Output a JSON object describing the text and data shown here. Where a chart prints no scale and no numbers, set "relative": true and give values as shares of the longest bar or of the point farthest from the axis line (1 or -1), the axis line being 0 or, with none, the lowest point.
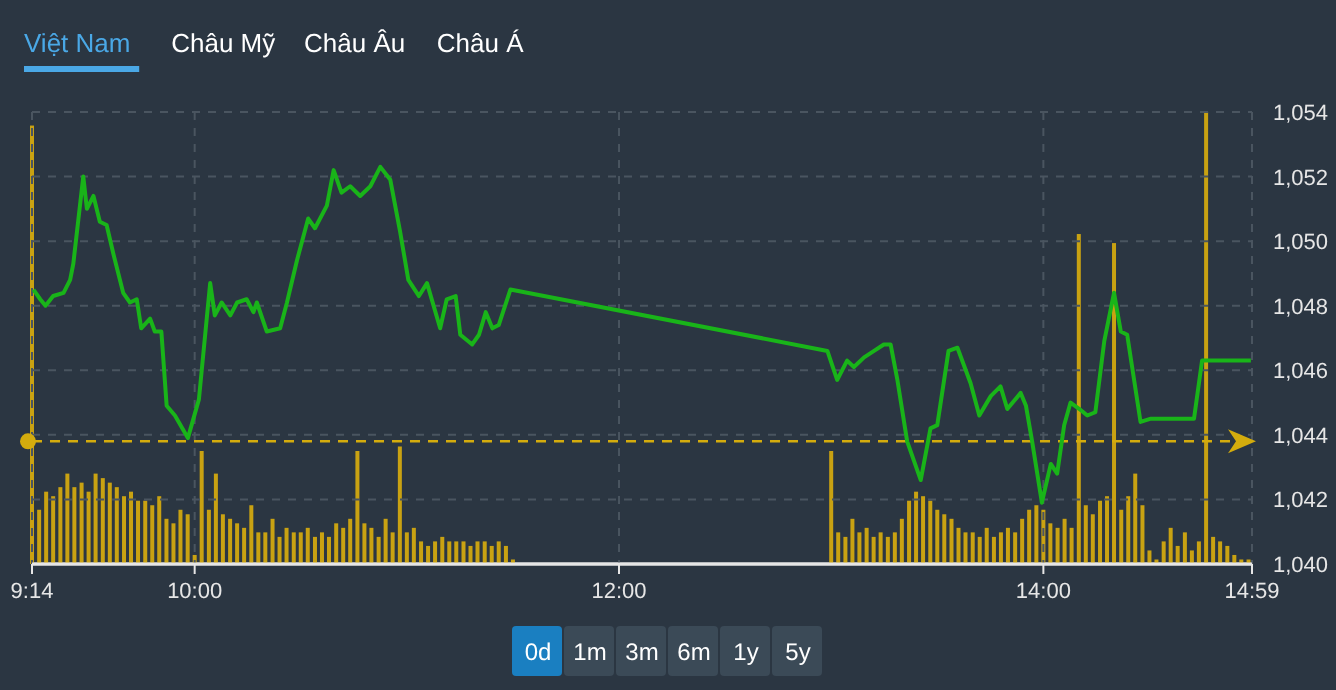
{
  "chart_data": [
    {
      "type": "line",
      "xlim": [
        9.2333,
        14.9833
      ],
      "ylim": [
        1040,
        1054
      ],
      "xticks": [
        {
          "value": 9.2333,
          "label": "9:14"
        },
        {
          "value": 10,
          "label": "10:00"
        },
        {
          "value": 12,
          "label": "12:00"
        },
        {
          "value": 14,
          "label": "14:00"
        },
        {
          "value": 14.9833,
          "label": "14:59"
        }
      ],
      "yticks": [
        {
          "value": 1040,
          "label": "1,040"
        },
        {
          "value": 1042,
          "label": "1,042"
        },
        {
          "value": 1044,
          "label": "1,044"
        },
        {
          "value": 1046,
          "label": "1,046"
        },
        {
          "value": 1048,
          "label": "1,048"
        },
        {
          "value": 1050,
          "label": "1,050"
        },
        {
          "value": 1052,
          "label": "1,052"
        },
        {
          "value": 1054,
          "label": "1,054"
        }
      ],
      "grid": true,
      "ref_lines": [
        {
          "axis": "y",
          "value": 1043.8,
          "color": "#d4ac0d",
          "line_style": "dashed"
        }
      ],
      "series": [
        {
          "color": "#19b419",
          "x": [
            9.24,
            9.272,
            9.297,
            9.333,
            9.382,
            9.413,
            9.428,
            9.475,
            9.492,
            9.523,
            9.553,
            9.585,
            9.617,
            9.663,
            9.695,
            9.727,
            9.748,
            9.79,
            9.812,
            9.843,
            9.868,
            9.907,
            9.968,
            10.02,
            10.073,
            10.095,
            10.127,
            10.168,
            10.2,
            10.245,
            10.277,
            10.293,
            10.34,
            10.403,
            10.435,
            10.482,
            10.535,
            10.567,
            10.623,
            10.655,
            10.692,
            10.733,
            10.78,
            10.828,
            10.875,
            10.922,
            10.968,
            11.007,
            11.057,
            11.095,
            11.157,
            11.188,
            11.23,
            11.252,
            11.308,
            11.34,
            11.372,
            11.403,
            11.433,
            11.488,
            12.982,
            13.028,
            13.075,
            13.107,
            13.155,
            13.202,
            13.248,
            13.28,
            13.312,
            13.358,
            13.422,
            13.468,
            13.5,
            13.553,
            13.595,
            13.657,
            13.698,
            13.752,
            13.798,
            13.83,
            13.893,
            13.918,
            13.947,
            13.993,
            14.035,
            14.065,
            14.098,
            14.128,
            14.17,
            14.207,
            14.245,
            14.287,
            14.333,
            14.365,
            14.395,
            14.458,
            14.507,
            14.71,
            14.748,
            14.978
          ],
          "values": [
            1048.5,
            1048.2,
            1048.0,
            1048.3,
            1048.4,
            1048.8,
            1049.3,
            1052.0,
            1051.0,
            1051.4,
            1050.6,
            1050.5,
            1049.6,
            1048.4,
            1048.1,
            1048.2,
            1047.3,
            1047.6,
            1047.2,
            1047.2,
            1044.9,
            1044.6,
            1043.9,
            1045.1,
            1048.7,
            1047.7,
            1048.1,
            1047.7,
            1048.1,
            1048.2,
            1047.8,
            1048.1,
            1047.2,
            1047.3,
            1048.1,
            1049.4,
            1050.7,
            1050.4,
            1051.1,
            1052.2,
            1051.5,
            1051.7,
            1051.4,
            1051.7,
            1052.3,
            1051.9,
            1050.3,
            1048.8,
            1048.3,
            1048.7,
            1047.3,
            1048.2,
            1048.3,
            1047.1,
            1046.8,
            1047.1,
            1047.8,
            1047.3,
            1047.4,
            1048.5,
            1046.6,
            1045.7,
            1046.3,
            1046.1,
            1046.4,
            1046.6,
            1046.8,
            1046.8,
            1045.7,
            1043.8,
            1042.6,
            1044.2,
            1044.3,
            1046.6,
            1046.7,
            1045.6,
            1044.6,
            1045.2,
            1045.5,
            1044.8,
            1045.3,
            1044.9,
            1043.8,
            1041.9,
            1043.1,
            1042.8,
            1044.3,
            1045.0,
            1044.8,
            1044.6,
            1044.7,
            1046.9,
            1048.4,
            1047.2,
            1047.1,
            1044.4,
            1044.5,
            1044.5,
            1046.3,
            1046.3
          ]
        }
      ]
    },
    {
      "type": "bar",
      "relative": true,
      "xlim": [
        9.2333,
        14.9833
      ],
      "series": [
        {
          "color": "#c9a212",
          "x": [
            9.2333,
            9.267,
            9.3,
            9.333,
            9.367,
            9.4,
            9.433,
            9.467,
            9.5,
            9.533,
            9.567,
            9.6,
            9.633,
            9.667,
            9.7,
            9.733,
            9.767,
            9.8,
            9.833,
            9.867,
            9.9,
            9.933,
            9.967,
            10.0,
            10.033,
            10.067,
            10.1,
            10.133,
            10.167,
            10.2,
            10.233,
            10.267,
            10.3,
            10.333,
            10.367,
            10.4,
            10.433,
            10.467,
            10.5,
            10.533,
            10.567,
            10.6,
            10.633,
            10.667,
            10.7,
            10.733,
            10.767,
            10.8,
            10.833,
            10.867,
            10.9,
            10.933,
            10.967,
            11.0,
            11.033,
            11.067,
            11.1,
            11.133,
            11.167,
            11.2,
            11.233,
            11.267,
            11.3,
            11.333,
            11.367,
            11.4,
            11.433,
            11.467,
            11.5,
            13.0,
            13.033,
            13.067,
            13.1,
            13.133,
            13.167,
            13.2,
            13.233,
            13.267,
            13.3,
            13.333,
            13.367,
            13.4,
            13.433,
            13.467,
            13.5,
            13.533,
            13.567,
            13.6,
            13.633,
            13.667,
            13.7,
            13.733,
            13.767,
            13.8,
            13.833,
            13.867,
            13.9,
            13.933,
            13.967,
            14.0,
            14.033,
            14.067,
            14.1,
            14.133,
            14.167,
            14.2,
            14.233,
            14.267,
            14.3,
            14.333,
            14.367,
            14.4,
            14.433,
            14.467,
            14.5,
            14.533,
            14.567,
            14.6,
            14.633,
            14.667,
            14.7,
            14.733,
            14.767,
            14.8,
            14.833,
            14.867,
            14.9,
            14.933,
            14.967
          ],
          "values": [
            0.97,
            0.12,
            0.16,
            0.15,
            0.17,
            0.2,
            0.17,
            0.18,
            0.16,
            0.2,
            0.19,
            0.18,
            0.17,
            0.15,
            0.16,
            0.14,
            0.14,
            0.13,
            0.15,
            0.1,
            0.09,
            0.12,
            0.11,
            0.02,
            0.25,
            0.12,
            0.2,
            0.11,
            0.1,
            0.09,
            0.08,
            0.13,
            0.07,
            0.07,
            0.1,
            0.06,
            0.08,
            0.07,
            0.07,
            0.08,
            0.06,
            0.07,
            0.06,
            0.09,
            0.08,
            0.1,
            0.25,
            0.09,
            0.08,
            0.06,
            0.1,
            0.07,
            0.26,
            0.07,
            0.08,
            0.05,
            0.04,
            0.05,
            0.06,
            0.05,
            0.05,
            0.05,
            0.04,
            0.05,
            0.05,
            0.04,
            0.05,
            0.04,
            0.01,
            0.25,
            0.07,
            0.06,
            0.1,
            0.07,
            0.08,
            0.06,
            0.07,
            0.06,
            0.07,
            0.1,
            0.14,
            0.16,
            0.15,
            0.14,
            0.12,
            0.11,
            0.1,
            0.08,
            0.07,
            0.07,
            0.06,
            0.08,
            0.06,
            0.07,
            0.08,
            0.07,
            0.1,
            0.12,
            0.13,
            0.12,
            0.09,
            0.08,
            0.1,
            0.08,
            0.73,
            0.13,
            0.11,
            0.14,
            0.15,
            0.71,
            0.12,
            0.15,
            0.2,
            0.13,
            0.03,
            0.01,
            0.05,
            0.08,
            0.04,
            0.07,
            0.03,
            0.05,
            1.0,
            0.06,
            0.05,
            0.04,
            0.02,
            0.01,
            0.01
          ]
        }
      ]
    },
    {
      "type": "other",
      "categories": [
        "Việt Nam",
        "Châu Mỹ",
        "Châu Âu",
        "Châu Á"
      ],
      "annotations": [
        "0d",
        "1m",
        "3m",
        "6m",
        "1y",
        "5y"
      ]
    }
  ]
}
